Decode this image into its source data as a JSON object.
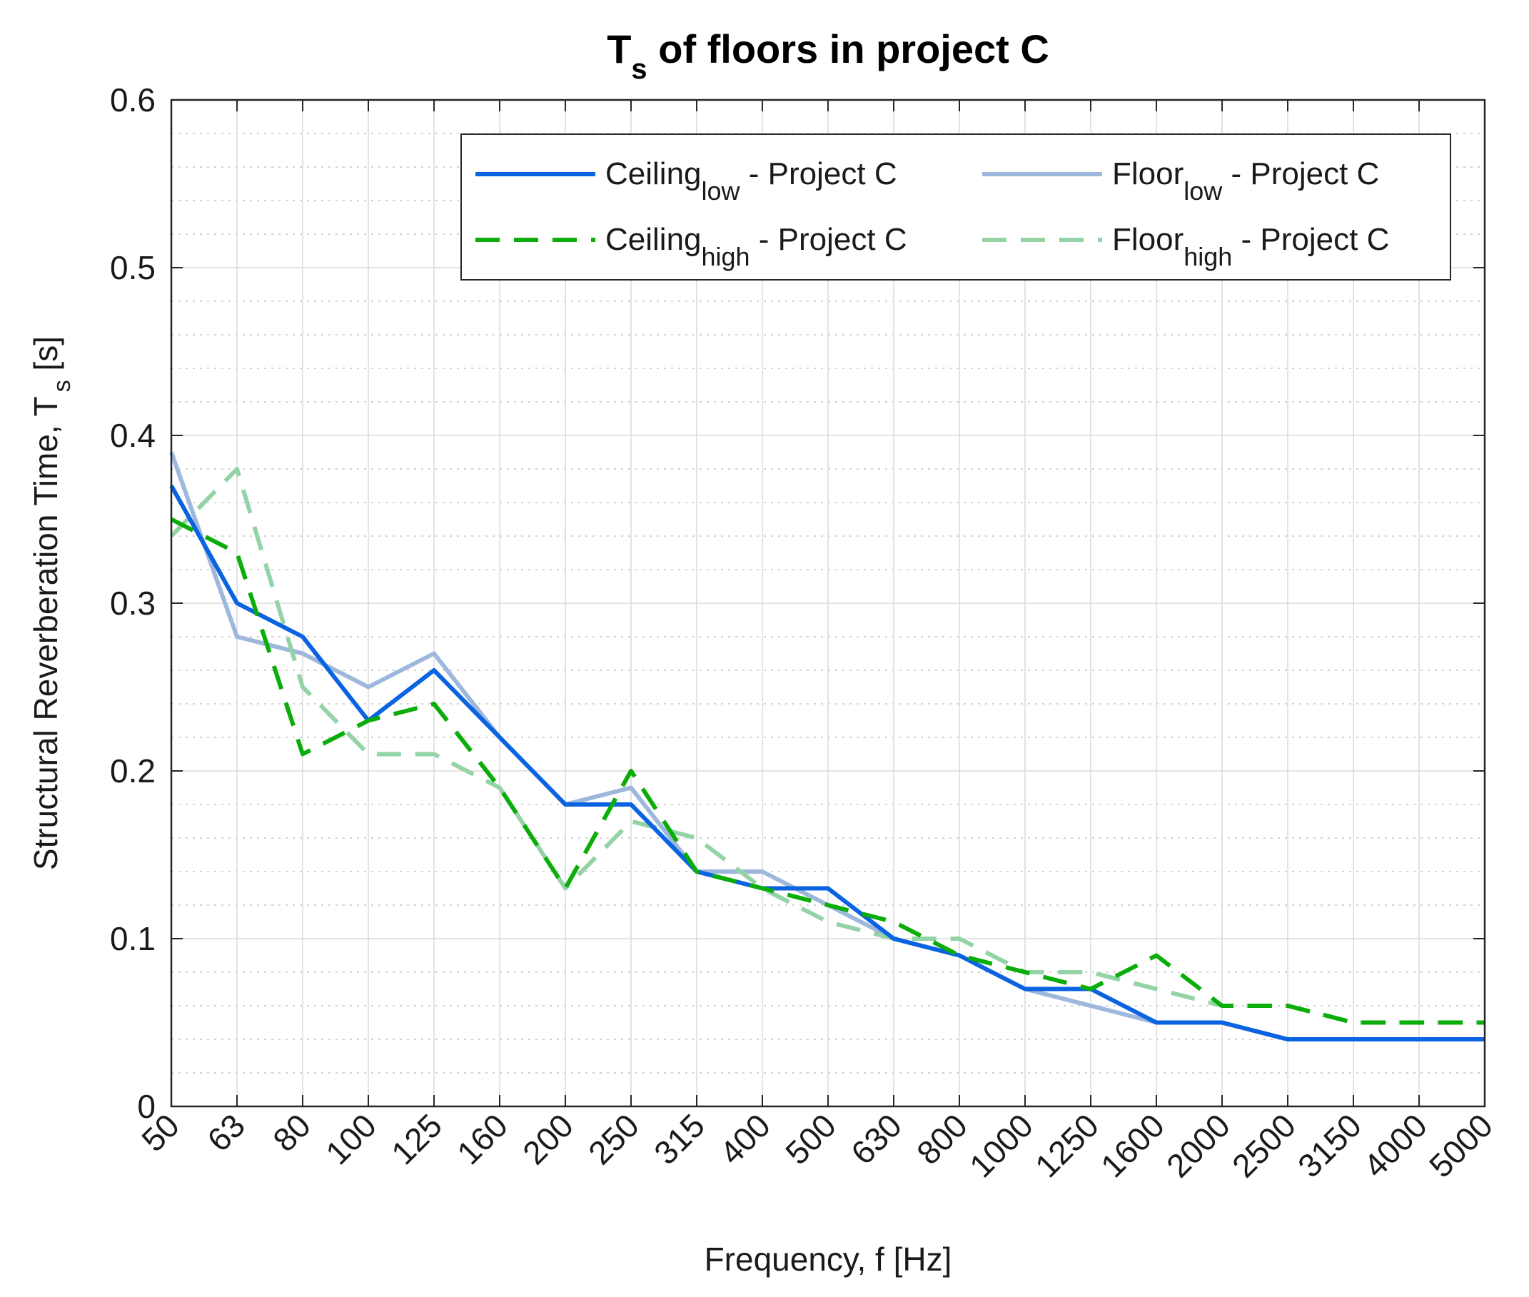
{
  "chart_data": {
    "type": "line",
    "title": "T",
    "title_subscript": "s",
    "title_rest": " of floors in project C",
    "xlabel": "Frequency, f [Hz]",
    "ylabel": "Structural Reverberation Time, T",
    "ylabel_subscript": "s",
    "ylabel_rest": " [s]",
    "categories": [
      "50",
      "63",
      "80",
      "100",
      "125",
      "160",
      "200",
      "250",
      "315",
      "400",
      "500",
      "630",
      "800",
      "1000",
      "1250",
      "1600",
      "2000",
      "2500",
      "3150",
      "4000",
      "5000"
    ],
    "ylim": [
      0,
      0.6
    ],
    "yticks": [
      "0",
      "0.1",
      "0.2",
      "0.3",
      "0.4",
      "0.5",
      "0.6"
    ],
    "ytick_values": [
      0,
      0.1,
      0.2,
      0.3,
      0.4,
      0.5,
      0.6
    ],
    "grid": true,
    "minor_grid": true,
    "legend_position": "top-right",
    "series": [
      {
        "name": "Ceiling",
        "name_sub": "low",
        "name_rest": " - Project C",
        "color": "#0a63e0",
        "dash": "solid",
        "values": [
          0.37,
          0.3,
          0.28,
          0.23,
          0.26,
          0.22,
          0.18,
          0.18,
          0.14,
          0.13,
          0.13,
          0.1,
          0.09,
          0.07,
          0.07,
          0.05,
          0.05,
          0.04,
          0.04,
          0.04,
          0.04
        ]
      },
      {
        "name": "Ceiling",
        "name_sub": "high",
        "name_rest": " - Project C",
        "color": "#0aad0a",
        "dash": "dashed",
        "values": [
          0.35,
          0.33,
          0.21,
          0.23,
          0.24,
          0.19,
          0.13,
          0.2,
          0.14,
          0.13,
          0.12,
          0.11,
          0.09,
          0.08,
          0.07,
          0.09,
          0.06,
          0.06,
          0.05,
          0.05,
          0.05
        ]
      },
      {
        "name": "Floor",
        "name_sub": "low",
        "name_rest": " - Project C",
        "color": "#9db7dd",
        "dash": "solid",
        "values": [
          0.39,
          0.28,
          0.27,
          0.25,
          0.27,
          0.22,
          0.18,
          0.19,
          0.14,
          0.14,
          0.12,
          0.1,
          0.09,
          0.07,
          0.06,
          0.05,
          0.05,
          0.04,
          0.04,
          0.04,
          0.04
        ]
      },
      {
        "name": "Floor",
        "name_sub": "high",
        "name_rest": " - Project C",
        "color": "#93d3a6",
        "dash": "dashed",
        "values": [
          0.34,
          0.38,
          0.25,
          0.21,
          0.21,
          0.19,
          0.13,
          0.17,
          0.16,
          0.13,
          0.11,
          0.1,
          0.1,
          0.08,
          0.08,
          0.07,
          0.06,
          0.06,
          0.05,
          0.05,
          0.05
        ]
      }
    ]
  }
}
